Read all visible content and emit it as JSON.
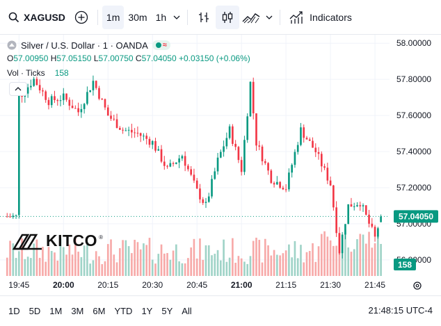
{
  "toolbar": {
    "symbol": "XAGUSD",
    "timeframes": [
      "1m",
      "30m",
      "1h"
    ],
    "active_timeframe": "1m",
    "indicators_label": "Indicators"
  },
  "legend": {
    "title": "Silver / U.S. Dollar · 1 · OANDA",
    "ohlc": [
      {
        "k": "O",
        "v": "57.00950"
      },
      {
        "k": "H",
        "v": "57.05150"
      },
      {
        "k": "L",
        "v": "57.00750"
      },
      {
        "k": "C",
        "v": "57.04050"
      },
      {
        "k": "",
        "v": "+0.03150 (+0.06%)"
      }
    ],
    "vol_label": "Vol · Ticks",
    "vol_value": "158"
  },
  "logo": {
    "text": "KITCO",
    "reg": "®"
  },
  "colors": {
    "up": "#089981",
    "down": "#f23645",
    "upVol": "#9fd3c7",
    "downVol": "#f7a9a8"
  },
  "bottom": {
    "ranges": [
      "1D",
      "5D",
      "1M",
      "3M",
      "6M",
      "YTD",
      "1Y",
      "5Y",
      "All"
    ],
    "clock": "21:48:15 UTC-4"
  },
  "chart_data": {
    "type": "candlestick",
    "title": "Silver / U.S. Dollar · 1 · OANDA",
    "y_ticks": [
      "58.00000",
      "57.80000",
      "57.60000",
      "57.40000",
      "57.20000",
      "57.00000",
      "56.80000"
    ],
    "ylim": [
      56.68,
      58.02
    ],
    "x_ticks": [
      "19:45",
      "20:00",
      "20:15",
      "20:30",
      "20:45",
      "21:00",
      "21:15",
      "21:30",
      "21:45"
    ],
    "current_price_label": "57.04050",
    "current_price": 57.0405,
    "volume_label": "158",
    "volume_max": 100,
    "key_points": [
      {
        "time": "19:45",
        "price": 57.7
      },
      {
        "time": "19:50",
        "price": 57.8
      },
      {
        "time": "19:55",
        "price": 57.68
      },
      {
        "time": "20:00",
        "price": 57.7
      },
      {
        "time": "20:05",
        "price": 57.62
      },
      {
        "time": "20:10",
        "price": 57.79
      },
      {
        "time": "20:15",
        "price": 57.6
      },
      {
        "time": "20:20",
        "price": 57.52
      },
      {
        "time": "20:25",
        "price": 57.5
      },
      {
        "time": "20:30",
        "price": 57.45
      },
      {
        "time": "20:35",
        "price": 57.3
      },
      {
        "time": "20:40",
        "price": 57.38
      },
      {
        "time": "20:45",
        "price": 57.18
      },
      {
        "time": "20:48",
        "price": 57.1
      },
      {
        "time": "20:52",
        "price": 57.35
      },
      {
        "time": "20:56",
        "price": 57.52
      },
      {
        "time": "21:00",
        "price": 57.3
      },
      {
        "time": "21:03",
        "price": 57.78
      },
      {
        "time": "21:05",
        "price": 57.45
      },
      {
        "time": "21:10",
        "price": 57.25
      },
      {
        "time": "21:15",
        "price": 57.2
      },
      {
        "time": "21:20",
        "price": 57.52
      },
      {
        "time": "21:25",
        "price": 57.4
      },
      {
        "time": "21:30",
        "price": 57.22
      },
      {
        "time": "21:33",
        "price": 56.85
      },
      {
        "time": "21:36",
        "price": 57.1
      },
      {
        "time": "21:40",
        "price": 57.12
      },
      {
        "time": "21:45",
        "price": 56.92
      },
      {
        "time": "21:47",
        "price": 57.04
      }
    ]
  }
}
